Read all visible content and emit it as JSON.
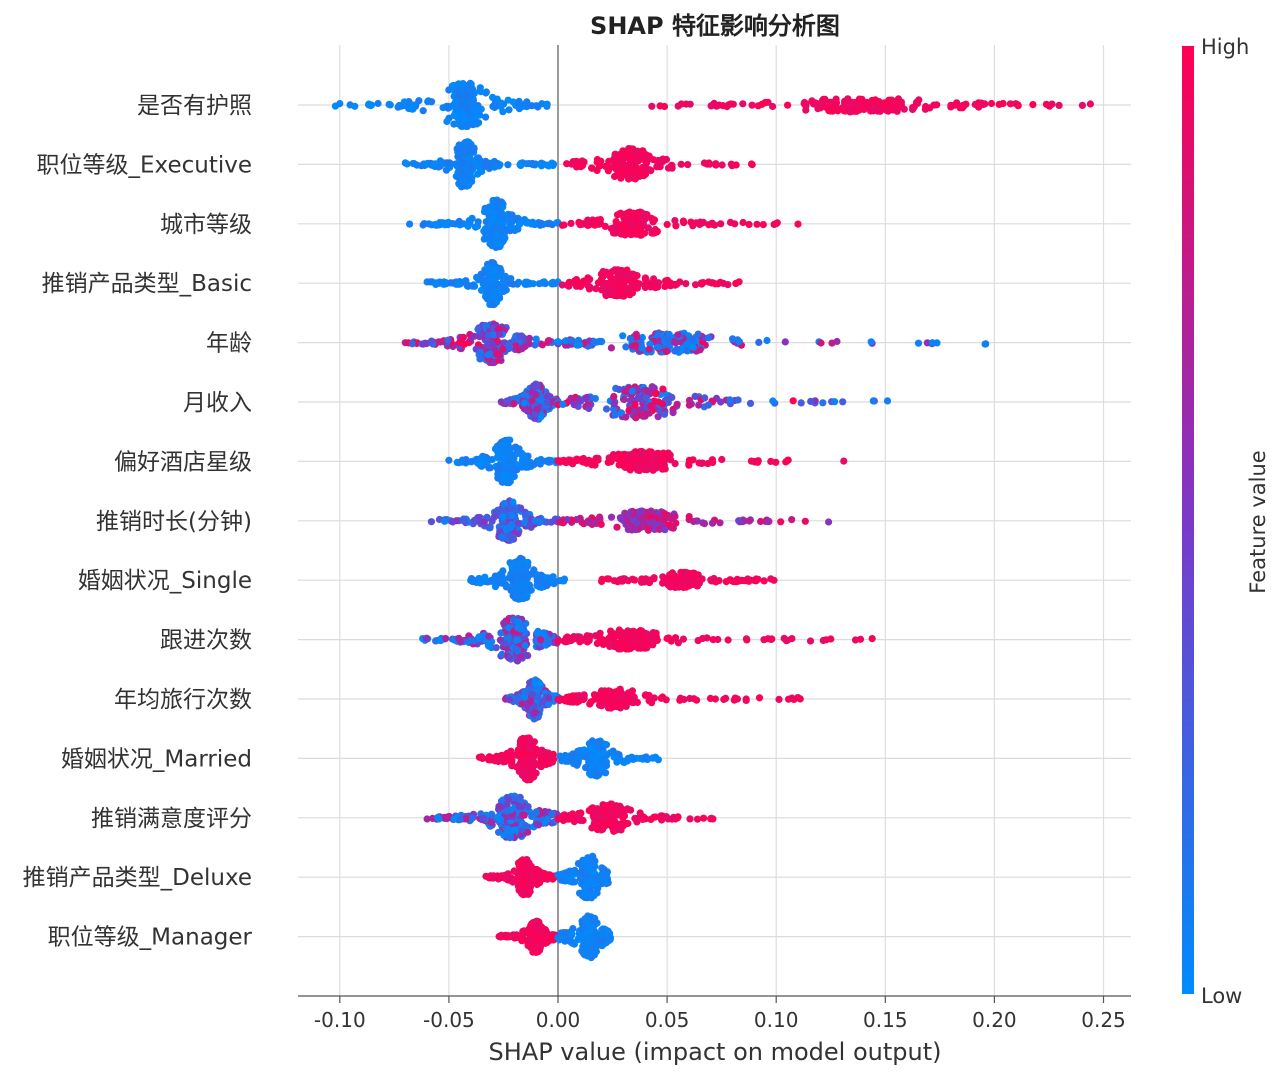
{
  "chart_data": {
    "type": "scatter",
    "subtype": "shap-beeswarm",
    "title": "SHAP 特征影响分析图",
    "xlabel": "SHAP value (impact on model output)",
    "xlim": [
      -0.12,
      0.26
    ],
    "xticks": [
      -0.1,
      -0.05,
      0.0,
      0.05,
      0.1,
      0.15,
      0.2,
      0.25
    ],
    "xtick_labels": [
      "-0.10",
      "-0.05",
      "0.00",
      "0.05",
      "0.10",
      "0.15",
      "0.20",
      "0.25"
    ],
    "grid": true,
    "colorbar": {
      "label": "Feature value",
      "high_label": "High",
      "low_label": "Low",
      "low_color": "#008bfb",
      "mid_color": "#7b39c8",
      "high_color": "#ff0052"
    },
    "features": [
      {
        "name": "是否有护照",
        "neg": [
          -0.102,
          -0.055,
          -0.03,
          -0.005
        ],
        "pos": [
          0.043,
          0.1,
          0.18,
          0.244
        ],
        "neg_value": "low",
        "pos_value": "high",
        "neg_height": 22,
        "pos_height": 7
      },
      {
        "name": "职位等级_Executive",
        "neg": [
          -0.07,
          -0.048,
          -0.037,
          -0.002
        ],
        "pos": [
          0.004,
          0.02,
          0.045,
          0.089
        ],
        "neg_value": "low",
        "pos_value": "high",
        "neg_height": 24,
        "pos_height": 16
      },
      {
        "name": "城市等级",
        "neg": [
          -0.068,
          -0.035,
          -0.022,
          0.0
        ],
        "pos": [
          0.002,
          0.02,
          0.05,
          0.11
        ],
        "neg_value": "low",
        "pos_value": "high",
        "neg_height": 24,
        "pos_height": 12
      },
      {
        "name": "推销产品类型_Basic",
        "neg": [
          -0.06,
          -0.035,
          -0.025,
          0.0
        ],
        "pos": [
          0.002,
          0.015,
          0.04,
          0.083
        ],
        "neg_value": "low",
        "pos_value": "high",
        "neg_height": 22,
        "pos_height": 14
      },
      {
        "name": "年龄",
        "neg": [
          -0.07,
          -0.04,
          -0.02,
          0.0
        ],
        "pos": [
          0.0,
          0.02,
          0.08,
          0.196
        ],
        "neg_value": "mixed",
        "pos_value": "low-leaning",
        "neg_height": 20,
        "pos_height": 10
      },
      {
        "name": "月收入",
        "neg": [
          -0.026,
          -0.015,
          -0.005,
          0.0
        ],
        "pos": [
          0.0,
          0.015,
          0.06,
          0.151
        ],
        "neg_value": "mid-low",
        "pos_value": "mixed",
        "neg_height": 18,
        "pos_height": 16
      },
      {
        "name": "偏好酒店星级",
        "neg": [
          -0.05,
          -0.03,
          -0.017,
          0.0
        ],
        "pos": [
          0.0,
          0.02,
          0.06,
          0.131
        ],
        "neg_value": "low",
        "pos_value": "high",
        "neg_height": 22,
        "pos_height": 10
      },
      {
        "name": "推销时长(分钟)",
        "neg": [
          -0.058,
          -0.03,
          -0.015,
          0.0
        ],
        "pos": [
          0.0,
          0.02,
          0.06,
          0.124
        ],
        "neg_value": "low-mid",
        "pos_value": "mid-high",
        "neg_height": 20,
        "pos_height": 10
      },
      {
        "name": "婚姻状况_Single",
        "neg": [
          -0.04,
          -0.025,
          -0.01,
          0.003
        ],
        "pos": [
          0.02,
          0.045,
          0.07,
          0.099
        ],
        "neg_value": "low",
        "pos_value": "high",
        "neg_height": 22,
        "pos_height": 8
      },
      {
        "name": "跟进次数",
        "neg": [
          -0.062,
          -0.03,
          -0.01,
          0.0
        ],
        "pos": [
          0.0,
          0.015,
          0.05,
          0.144
        ],
        "neg_value": "mid-low",
        "pos_value": "high",
        "neg_height": 22,
        "pos_height": 10
      },
      {
        "name": "年均旅行次数",
        "neg": [
          -0.024,
          -0.015,
          -0.006,
          0.0
        ],
        "pos": [
          0.0,
          0.012,
          0.04,
          0.111
        ],
        "neg_value": "mid-low",
        "pos_value": "high",
        "neg_height": 20,
        "pos_height": 10
      },
      {
        "name": "婚姻状况_Married",
        "neg": [
          -0.036,
          -0.02,
          -0.008,
          -0.002
        ],
        "pos": [
          0.001,
          0.01,
          0.025,
          0.046
        ],
        "neg_value": "high",
        "pos_value": "low",
        "neg_height": 22,
        "pos_height": 18
      },
      {
        "name": "推销满意度评分",
        "neg": [
          -0.06,
          -0.03,
          -0.01,
          0.0
        ],
        "pos": [
          0.0,
          0.012,
          0.035,
          0.071
        ],
        "neg_value": "mid-low",
        "pos_value": "high",
        "neg_height": 22,
        "pos_height": 14
      },
      {
        "name": "推销产品类型_Deluxe",
        "neg": [
          -0.033,
          -0.02,
          -0.01,
          -0.001
        ],
        "pos": [
          0.0,
          0.008,
          0.02,
          0.023
        ],
        "neg_value": "high",
        "pos_value": "low",
        "neg_height": 18,
        "pos_height": 22
      },
      {
        "name": "职位等级_Manager",
        "neg": [
          -0.027,
          -0.015,
          -0.006,
          -0.001
        ],
        "pos": [
          0.0,
          0.008,
          0.02,
          0.024
        ],
        "neg_value": "high",
        "pos_value": "low",
        "neg_height": 16,
        "pos_height": 22
      }
    ]
  }
}
